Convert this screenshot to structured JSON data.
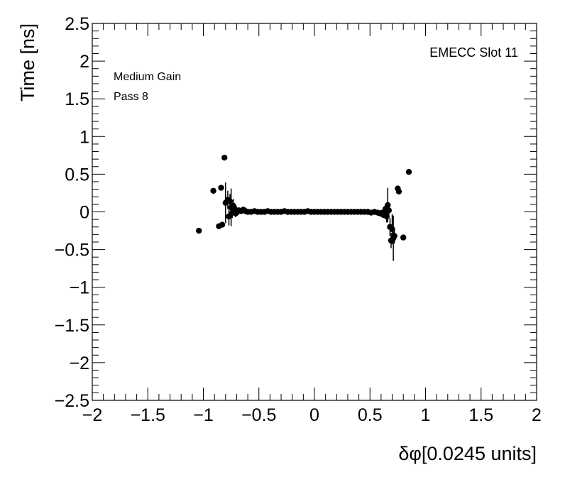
{
  "chart_data": {
    "type": "scatter",
    "xlabel": "δφ[0.0245 units]",
    "ylabel": "Time [ns]",
    "xlim": [
      -2,
      2
    ],
    "ylim": [
      -2.5,
      2.5
    ],
    "x_ticks": [
      -2,
      -1.5,
      -1,
      -0.5,
      0,
      0.5,
      1,
      1.5,
      2
    ],
    "x_tick_labels": [
      "−2",
      "−1.5",
      "−1",
      "−0.5",
      "0",
      "0.5",
      "1",
      "1.5",
      "2"
    ],
    "y_ticks": [
      2.5,
      2,
      1.5,
      1,
      0.5,
      0,
      -0.5,
      -1,
      -1.5,
      -2,
      -2.5
    ],
    "y_tick_labels": [
      "2.5",
      "2",
      "1.5",
      "1",
      "0.5",
      "0",
      "−0.5",
      "−1",
      "−1.5",
      "−2",
      "−2.5"
    ],
    "grid": false,
    "annotations": {
      "label_right": "EMECC Slot 11",
      "label_left_1": "Medium Gain",
      "label_left_2": "Pass 8"
    },
    "marker_color": "#000000",
    "points": [
      {
        "x": -1.04,
        "y": -0.25,
        "err": 0.0
      },
      {
        "x": -0.91,
        "y": 0.28,
        "err": 0.0
      },
      {
        "x": -0.86,
        "y": -0.19,
        "err": 0.0
      },
      {
        "x": -0.84,
        "y": 0.32,
        "err": 0.0
      },
      {
        "x": -0.83,
        "y": -0.17,
        "err": 0.0
      },
      {
        "x": -0.81,
        "y": 0.72,
        "err": 0.0
      },
      {
        "x": -0.8,
        "y": 0.12,
        "err": 0.27
      },
      {
        "x": -0.78,
        "y": 0.16,
        "err": 0.12
      },
      {
        "x": -0.77,
        "y": -0.06,
        "err": 0.12
      },
      {
        "x": -0.76,
        "y": 0.14,
        "err": 0.1
      },
      {
        "x": -0.75,
        "y": 0.06,
        "err": 0.25
      },
      {
        "x": -0.74,
        "y": -0.01,
        "err": 0.07
      },
      {
        "x": -0.73,
        "y": 0.08,
        "err": 0.09
      },
      {
        "x": -0.72,
        "y": 0.05,
        "err": 0.06
      },
      {
        "x": -0.71,
        "y": -0.02,
        "err": 0.05
      },
      {
        "x": -0.7,
        "y": -0.01,
        "err": 0.04
      },
      {
        "x": -0.68,
        "y": 0.02,
        "err": 0.03
      },
      {
        "x": -0.66,
        "y": 0.01,
        "err": 0.02
      },
      {
        "x": -0.64,
        "y": 0.03,
        "err": 0.02
      },
      {
        "x": -0.62,
        "y": 0.01,
        "err": 0.0
      },
      {
        "x": -0.6,
        "y": 0.0,
        "err": 0.0
      },
      {
        "x": -0.57,
        "y": 0.0,
        "err": 0.0
      },
      {
        "x": -0.54,
        "y": 0.01,
        "err": 0.0
      },
      {
        "x": -0.51,
        "y": 0.0,
        "err": 0.0
      },
      {
        "x": -0.48,
        "y": 0.0,
        "err": 0.0
      },
      {
        "x": -0.45,
        "y": 0.0,
        "err": 0.0
      },
      {
        "x": -0.42,
        "y": 0.01,
        "err": 0.0
      },
      {
        "x": -0.39,
        "y": 0.0,
        "err": 0.0
      },
      {
        "x": -0.36,
        "y": 0.0,
        "err": 0.0
      },
      {
        "x": -0.33,
        "y": 0.0,
        "err": 0.0
      },
      {
        "x": -0.3,
        "y": 0.0,
        "err": 0.0
      },
      {
        "x": -0.27,
        "y": 0.01,
        "err": 0.0
      },
      {
        "x": -0.24,
        "y": 0.0,
        "err": 0.0
      },
      {
        "x": -0.21,
        "y": 0.0,
        "err": 0.0
      },
      {
        "x": -0.18,
        "y": 0.0,
        "err": 0.0
      },
      {
        "x": -0.15,
        "y": 0.0,
        "err": 0.0
      },
      {
        "x": -0.12,
        "y": 0.0,
        "err": 0.0
      },
      {
        "x": -0.09,
        "y": 0.0,
        "err": 0.0
      },
      {
        "x": -0.06,
        "y": 0.01,
        "err": 0.0
      },
      {
        "x": -0.03,
        "y": 0.0,
        "err": 0.0
      },
      {
        "x": 0.0,
        "y": 0.0,
        "err": 0.0
      },
      {
        "x": 0.03,
        "y": 0.0,
        "err": 0.0
      },
      {
        "x": 0.06,
        "y": 0.0,
        "err": 0.0
      },
      {
        "x": 0.09,
        "y": 0.0,
        "err": 0.0
      },
      {
        "x": 0.12,
        "y": 0.0,
        "err": 0.0
      },
      {
        "x": 0.15,
        "y": 0.0,
        "err": 0.0
      },
      {
        "x": 0.18,
        "y": 0.0,
        "err": 0.0
      },
      {
        "x": 0.21,
        "y": 0.0,
        "err": 0.0
      },
      {
        "x": 0.24,
        "y": 0.0,
        "err": 0.0
      },
      {
        "x": 0.27,
        "y": 0.0,
        "err": 0.0
      },
      {
        "x": 0.3,
        "y": 0.0,
        "err": 0.0
      },
      {
        "x": 0.33,
        "y": 0.0,
        "err": 0.0
      },
      {
        "x": 0.36,
        "y": 0.0,
        "err": 0.0
      },
      {
        "x": 0.39,
        "y": 0.0,
        "err": 0.0
      },
      {
        "x": 0.42,
        "y": 0.0,
        "err": 0.0
      },
      {
        "x": 0.45,
        "y": 0.0,
        "err": 0.0
      },
      {
        "x": 0.48,
        "y": 0.0,
        "err": 0.0
      },
      {
        "x": 0.51,
        "y": -0.01,
        "err": 0.0
      },
      {
        "x": 0.54,
        "y": 0.0,
        "err": 0.0
      },
      {
        "x": 0.57,
        "y": -0.01,
        "err": 0.0
      },
      {
        "x": 0.59,
        "y": -0.02,
        "err": 0.02
      },
      {
        "x": 0.61,
        "y": -0.01,
        "err": 0.02
      },
      {
        "x": 0.62,
        "y": -0.04,
        "err": 0.04
      },
      {
        "x": 0.63,
        "y": -0.02,
        "err": 0.06
      },
      {
        "x": 0.64,
        "y": 0.04,
        "err": 0.06
      },
      {
        "x": 0.65,
        "y": -0.06,
        "err": 0.08
      },
      {
        "x": 0.66,
        "y": 0.09,
        "err": 0.23
      },
      {
        "x": 0.67,
        "y": 0.02,
        "err": 0.1
      },
      {
        "x": 0.68,
        "y": -0.2,
        "err": 0.12
      },
      {
        "x": 0.69,
        "y": -0.38,
        "err": 0.1
      },
      {
        "x": 0.7,
        "y": -0.23,
        "err": 0.2
      },
      {
        "x": 0.71,
        "y": -0.35,
        "err": 0.3
      },
      {
        "x": 0.72,
        "y": -0.32,
        "err": 0.1
      },
      {
        "x": 0.75,
        "y": 0.31,
        "err": 0.0
      },
      {
        "x": 0.76,
        "y": 0.27,
        "err": 0.0
      },
      {
        "x": 0.8,
        "y": -0.34,
        "err": 0.0
      },
      {
        "x": 0.85,
        "y": 0.53,
        "err": 0.0
      }
    ]
  }
}
